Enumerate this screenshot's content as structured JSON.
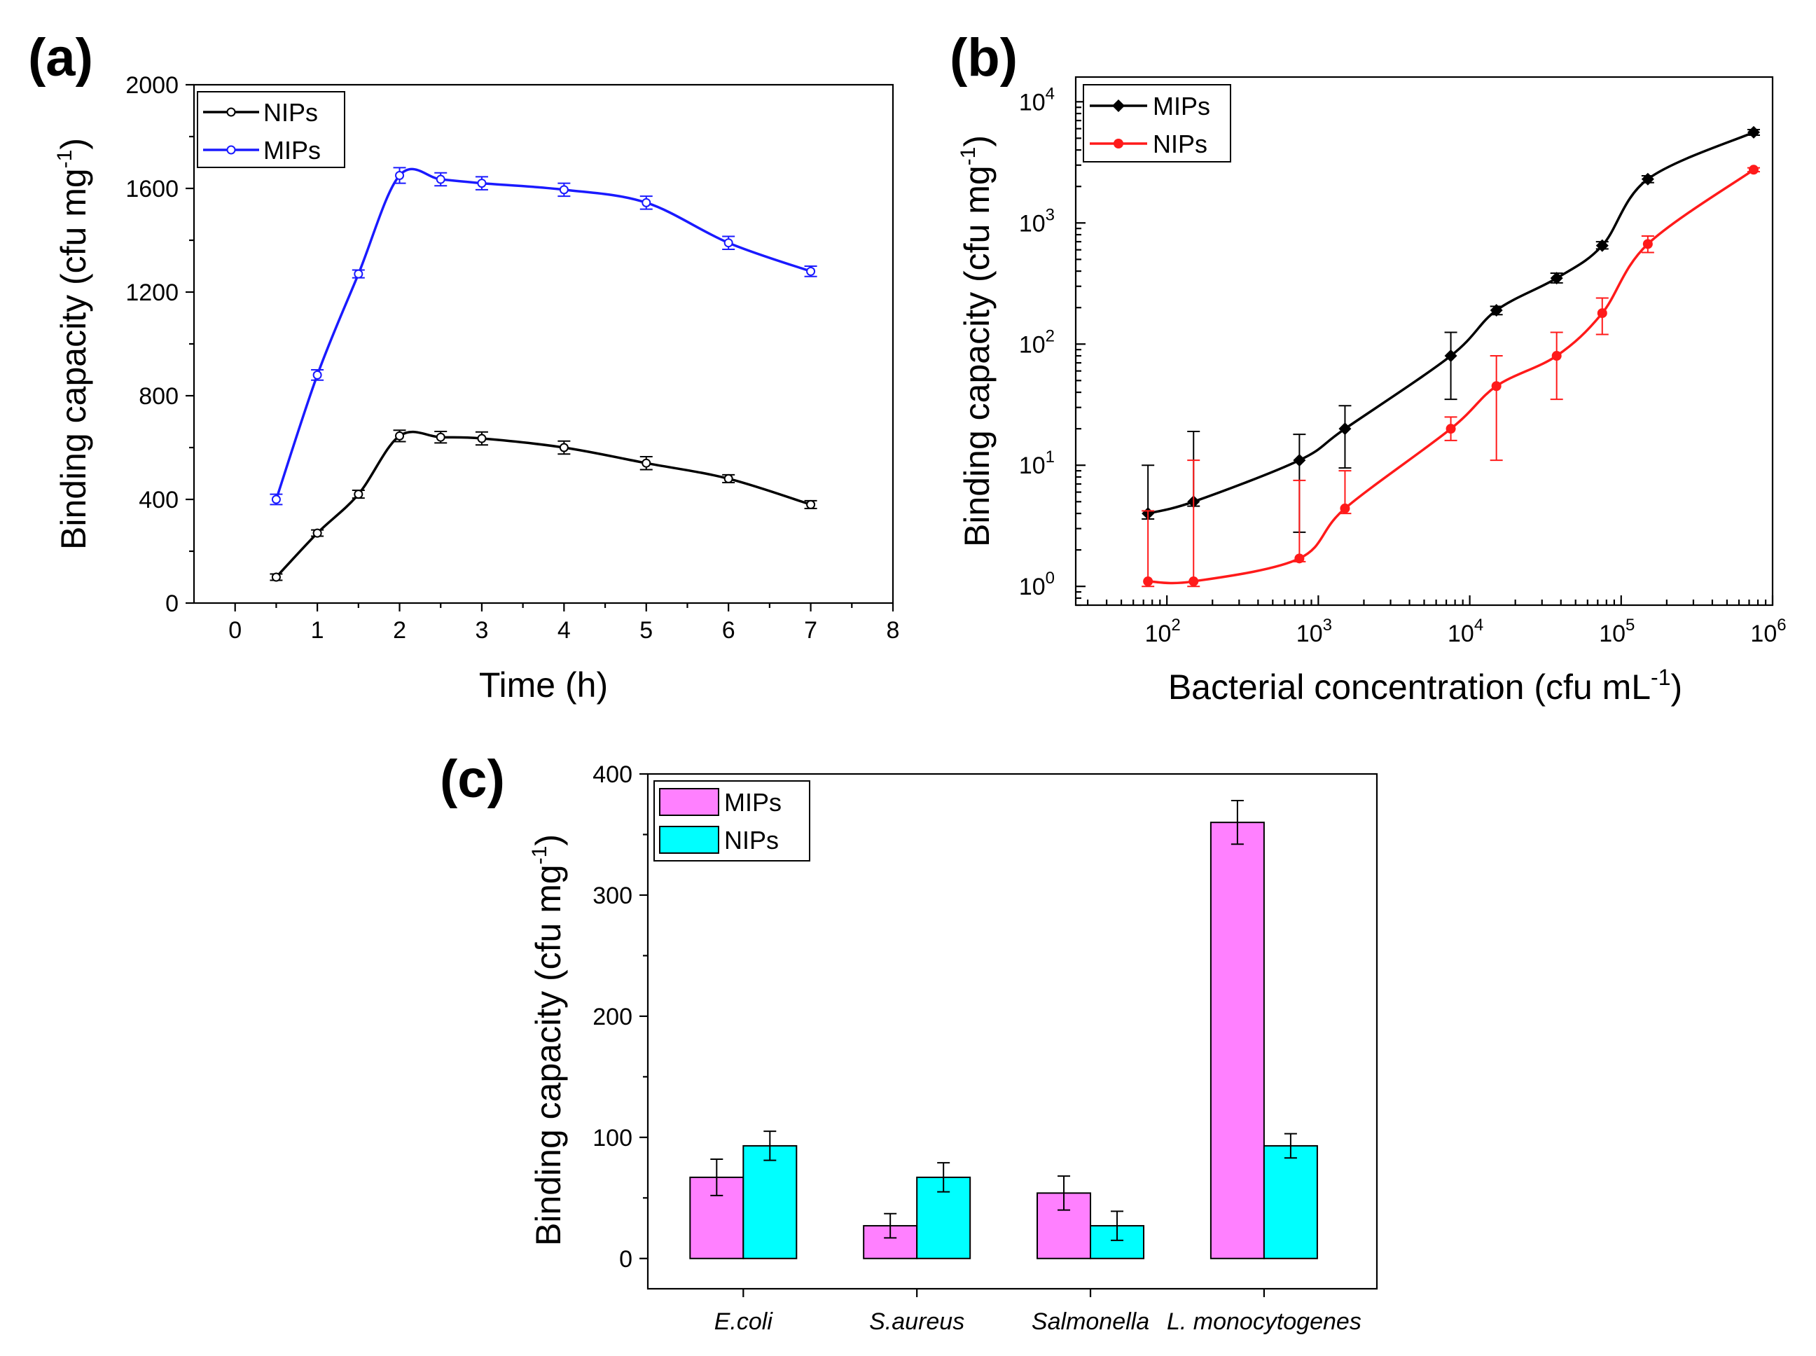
{
  "chart_data": [
    {
      "panel": "(a)",
      "type": "line",
      "xlabel": "Time (h)",
      "ylabel": "Binding capacity (cfu mg",
      "ylabel_sup": "-1",
      "ylabel_end": ")",
      "xlim": [
        -0.5,
        8
      ],
      "ylim": [
        0,
        2000
      ],
      "xticks": [
        0,
        1,
        2,
        3,
        4,
        5,
        6,
        7,
        8
      ],
      "yticks": [
        0,
        400,
        800,
        1200,
        1600,
        2000
      ],
      "legend_position": "top-left",
      "series": [
        {
          "name": "NIPs",
          "color": "#000000",
          "marker": "open-circle",
          "x": [
            0.5,
            1,
            1.5,
            2,
            2.5,
            3,
            4,
            5,
            6,
            7
          ],
          "y": [
            100,
            270,
            420,
            645,
            640,
            635,
            600,
            540,
            480,
            380
          ],
          "err": [
            12,
            12,
            15,
            22,
            22,
            25,
            25,
            25,
            15,
            15
          ]
        },
        {
          "name": "MIPs",
          "color": "#1a1aff",
          "marker": "open-circle",
          "x": [
            0.5,
            1,
            1.5,
            2,
            2.5,
            3,
            4,
            5,
            6,
            7
          ],
          "y": [
            400,
            880,
            1270,
            1650,
            1635,
            1620,
            1595,
            1545,
            1390,
            1280
          ],
          "err": [
            20,
            20,
            15,
            30,
            25,
            25,
            25,
            25,
            25,
            20
          ]
        }
      ]
    },
    {
      "panel": "(b)",
      "type": "line",
      "xscale": "log",
      "yscale": "log",
      "xlabel": "Bacterial concentration (cfu mL",
      "xlabel_sup": "-1",
      "xlabel_end": ")",
      "ylabel": "Binding capacity (cfu mg",
      "ylabel_sup": "-1",
      "ylabel_end": ")",
      "xlim": [
        25,
        1000000
      ],
      "ylim": [
        0.7,
        16000
      ],
      "xticks": [
        {
          "base": "10",
          "exp": "2",
          "v": 100
        },
        {
          "base": "10",
          "exp": "3",
          "v": 1000
        },
        {
          "base": "10",
          "exp": "4",
          "v": 10000
        },
        {
          "base": "10",
          "exp": "5",
          "v": 100000
        },
        {
          "base": "10",
          "exp": "6",
          "v": 1000000
        }
      ],
      "yticks": [
        {
          "base": "10",
          "exp": "0",
          "v": 1
        },
        {
          "base": "10",
          "exp": "1",
          "v": 10
        },
        {
          "base": "10",
          "exp": "2",
          "v": 100
        },
        {
          "base": "10",
          "exp": "3",
          "v": 1000
        },
        {
          "base": "10",
          "exp": "4",
          "v": 10000
        }
      ],
      "legend_position": "top-left",
      "series": [
        {
          "name": "MIPs",
          "color": "#000000",
          "marker": "diamond",
          "x": [
            75,
            150,
            750,
            1500,
            7500,
            15000,
            37500,
            75000,
            150000,
            750000
          ],
          "y": [
            4,
            5,
            11,
            20,
            80,
            190,
            350,
            650,
            2300,
            5600
          ],
          "err_high": [
            10,
            19,
            18,
            31,
            125,
            205,
            385,
            700,
            2450,
            5900
          ],
          "err_low": [
            3.6,
            4.6,
            2.8,
            9.5,
            35,
            175,
            320,
            610,
            2150,
            5300
          ]
        },
        {
          "name": "NIPs",
          "color": "#ff1a1a",
          "marker": "circle",
          "x": [
            75,
            150,
            750,
            1500,
            7500,
            15000,
            37500,
            75000,
            150000,
            750000
          ],
          "y": [
            1.1,
            1.1,
            1.7,
            4.4,
            20,
            45,
            80,
            180,
            670,
            2750
          ],
          "err_high": [
            4.2,
            11,
            7.5,
            9,
            25,
            80,
            125,
            240,
            780,
            2850
          ],
          "err_low": [
            1,
            1,
            1.6,
            4,
            16,
            11,
            35,
            120,
            570,
            2650
          ]
        }
      ]
    },
    {
      "panel": "(c)",
      "type": "bar",
      "categories": [
        "E.coli",
        "S.aureus",
        "Salmonella",
        "L. monocytogenes"
      ],
      "xlabel": "",
      "ylabel": "Binding capacity (cfu mg",
      "ylabel_sup": "-1",
      "ylabel_end": ")",
      "ylim": [
        -25,
        400
      ],
      "yticks": [
        0,
        100,
        200,
        300,
        400
      ],
      "legend_position": "top-left",
      "series": [
        {
          "name": "MIPs",
          "color": "#ff80ff",
          "values": [
            67,
            27,
            54,
            360
          ],
          "err": [
            15,
            10,
            14,
            18
          ]
        },
        {
          "name": "NIPs",
          "color": "#00ffff",
          "values": [
            93,
            67,
            27,
            93
          ],
          "err": [
            12,
            12,
            12,
            10
          ]
        }
      ]
    }
  ]
}
